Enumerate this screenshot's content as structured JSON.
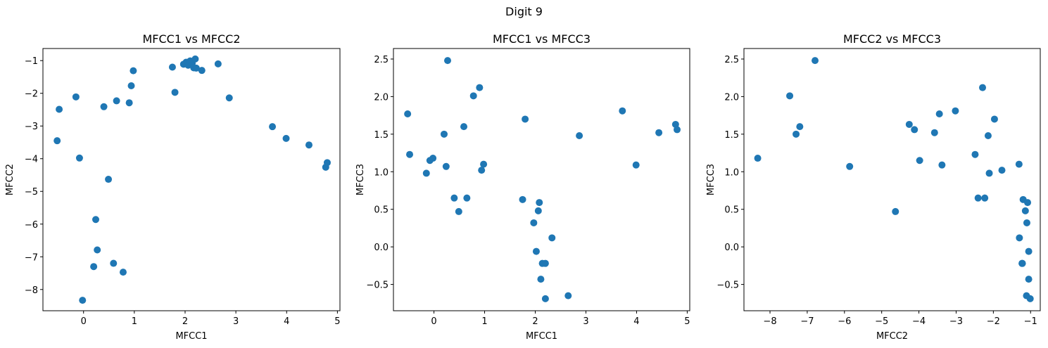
{
  "figure": {
    "title": "Digit 9"
  },
  "chart_data": [
    {
      "type": "scatter",
      "title": "MFCC1 vs MFCC2",
      "xlabel": "MFCC1",
      "ylabel": "MFCC2",
      "xlim": [
        -0.8,
        5.05
      ],
      "ylim": [
        -8.65,
        -0.63
      ],
      "xticks": [
        0,
        1,
        2,
        3,
        4,
        5
      ],
      "xtick_labels": [
        "0",
        "1",
        "2",
        "3",
        "4",
        "5"
      ],
      "yticks": [
        -8,
        -7,
        -6,
        -5,
        -4,
        -3,
        -2,
        -1
      ],
      "ytick_labels": [
        "−8",
        "−7",
        "−6",
        "−5",
        "−4",
        "−3",
        "−2",
        "−1"
      ],
      "color": "#1f77b4",
      "points": [
        [
          -0.52,
          -3.45
        ],
        [
          -0.48,
          -2.49
        ],
        [
          -0.15,
          -2.11
        ],
        [
          -0.08,
          -3.98
        ],
        [
          -0.02,
          -8.33
        ],
        [
          0.2,
          -7.3
        ],
        [
          0.24,
          -5.86
        ],
        [
          0.27,
          -6.79
        ],
        [
          0.4,
          -2.41
        ],
        [
          0.49,
          -4.63
        ],
        [
          0.59,
          -7.2
        ],
        [
          0.65,
          -2.23
        ],
        [
          0.78,
          -7.47
        ],
        [
          0.9,
          -2.29
        ],
        [
          0.94,
          -1.77
        ],
        [
          0.98,
          -1.31
        ],
        [
          1.75,
          -1.2
        ],
        [
          1.8,
          -1.97
        ],
        [
          1.97,
          -1.11
        ],
        [
          2.02,
          -1.05
        ],
        [
          2.06,
          -1.14
        ],
        [
          2.1,
          -1.01
        ],
        [
          2.14,
          -1.08
        ],
        [
          2.17,
          -1.22
        ],
        [
          2.2,
          -0.95
        ],
        [
          2.22,
          -1.23
        ],
        [
          2.33,
          -1.3
        ],
        [
          2.65,
          -1.1
        ],
        [
          2.87,
          -2.14
        ],
        [
          3.72,
          -3.02
        ],
        [
          3.99,
          -3.38
        ],
        [
          4.44,
          -3.58
        ],
        [
          4.77,
          -4.26
        ],
        [
          4.8,
          -4.12
        ]
      ]
    },
    {
      "type": "scatter",
      "title": "MFCC1 vs MFCC3",
      "xlabel": "MFCC1",
      "ylabel": "MFCC3",
      "xlim": [
        -0.8,
        5.05
      ],
      "ylim": [
        -0.85,
        2.64
      ],
      "xticks": [
        0,
        1,
        2,
        3,
        4,
        5
      ],
      "xtick_labels": [
        "0",
        "1",
        "2",
        "3",
        "4",
        "5"
      ],
      "yticks": [
        -0.5,
        0.0,
        0.5,
        1.0,
        1.5,
        2.0,
        2.5
      ],
      "ytick_labels": [
        "−0.5",
        "0.0",
        "0.5",
        "1.0",
        "1.5",
        "2.0",
        "2.5"
      ],
      "color": "#1f77b4",
      "points": [
        [
          -0.52,
          1.77
        ],
        [
          -0.48,
          1.23
        ],
        [
          -0.15,
          0.98
        ],
        [
          -0.08,
          1.15
        ],
        [
          -0.02,
          1.18
        ],
        [
          0.2,
          1.5
        ],
        [
          0.24,
          1.07
        ],
        [
          0.27,
          2.48
        ],
        [
          0.4,
          0.65
        ],
        [
          0.49,
          0.47
        ],
        [
          0.59,
          1.6
        ],
        [
          0.65,
          0.65
        ],
        [
          0.78,
          2.01
        ],
        [
          0.9,
          2.12
        ],
        [
          0.94,
          1.02
        ],
        [
          0.98,
          1.1
        ],
        [
          1.75,
          0.63
        ],
        [
          1.8,
          1.7
        ],
        [
          1.97,
          0.32
        ],
        [
          2.02,
          -0.06
        ],
        [
          2.06,
          0.48
        ],
        [
          2.08,
          0.59
        ],
        [
          2.11,
          -0.43
        ],
        [
          2.14,
          -0.22
        ],
        [
          2.2,
          -0.22
        ],
        [
          2.2,
          -0.69
        ],
        [
          2.33,
          0.12
        ],
        [
          2.65,
          -0.65
        ],
        [
          2.87,
          1.48
        ],
        [
          3.72,
          1.81
        ],
        [
          3.99,
          1.09
        ],
        [
          4.44,
          1.52
        ],
        [
          4.77,
          1.63
        ],
        [
          4.8,
          1.56
        ]
      ]
    },
    {
      "type": "scatter",
      "title": "MFCC2 vs MFCC3",
      "xlabel": "MFCC2",
      "ylabel": "MFCC3",
      "xlim": [
        -8.7,
        -0.74
      ],
      "ylim": [
        -0.85,
        2.64
      ],
      "xticks": [
        -8,
        -7,
        -6,
        -5,
        -4,
        -3,
        -2,
        -1
      ],
      "xtick_labels": [
        "−8",
        "−7",
        "−6",
        "−5",
        "−4",
        "−3",
        "−2",
        "−1"
      ],
      "yticks": [
        -0.5,
        0.0,
        0.5,
        1.0,
        1.5,
        2.0,
        2.5
      ],
      "ytick_labels": [
        "−0.5",
        "0.0",
        "0.5",
        "1.0",
        "1.5",
        "2.0",
        "2.5"
      ],
      "color": "#1f77b4",
      "points": [
        [
          -8.33,
          1.18
        ],
        [
          -7.47,
          2.01
        ],
        [
          -7.3,
          1.5
        ],
        [
          -7.2,
          1.6
        ],
        [
          -6.79,
          2.48
        ],
        [
          -5.86,
          1.07
        ],
        [
          -4.63,
          0.47
        ],
        [
          -4.26,
          1.63
        ],
        [
          -4.12,
          1.56
        ],
        [
          -3.98,
          1.15
        ],
        [
          -3.58,
          1.52
        ],
        [
          -3.45,
          1.77
        ],
        [
          -3.38,
          1.09
        ],
        [
          -3.02,
          1.81
        ],
        [
          -2.49,
          1.23
        ],
        [
          -2.41,
          0.65
        ],
        [
          -2.29,
          2.12
        ],
        [
          -2.23,
          0.65
        ],
        [
          -2.14,
          1.48
        ],
        [
          -2.11,
          0.98
        ],
        [
          -1.97,
          1.7
        ],
        [
          -1.77,
          1.02
        ],
        [
          -1.31,
          1.1
        ],
        [
          -1.3,
          0.12
        ],
        [
          -1.23,
          -0.22
        ],
        [
          -1.2,
          0.63
        ],
        [
          -1.22,
          -0.22
        ],
        [
          -1.14,
          0.48
        ],
        [
          -1.11,
          -0.65
        ],
        [
          -1.1,
          0.32
        ],
        [
          -1.08,
          0.59
        ],
        [
          -1.05,
          -0.06
        ],
        [
          -1.05,
          -0.43
        ],
        [
          -1.01,
          -0.69
        ]
      ]
    }
  ]
}
